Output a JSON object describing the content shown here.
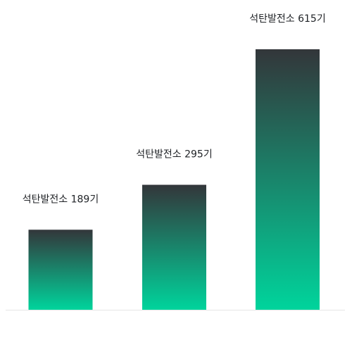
{
  "chart_data": {
    "type": "bar",
    "title": "",
    "xlabel": "",
    "ylabel": "",
    "ylim": [
      0,
      615
    ],
    "grid": false,
    "legend": "none",
    "categories": [
      "",
      "",
      ""
    ],
    "values": [
      189,
      295,
      615
    ],
    "data_labels": [
      "석탄발전소 189기",
      "석탄발전소 295기",
      "석탄발전소 615기"
    ],
    "colors": {
      "gradient_top": "#33363a",
      "gradient_bottom": "#00d49c",
      "baseline": "#e6e6e6",
      "label": "#1f2226"
    }
  }
}
